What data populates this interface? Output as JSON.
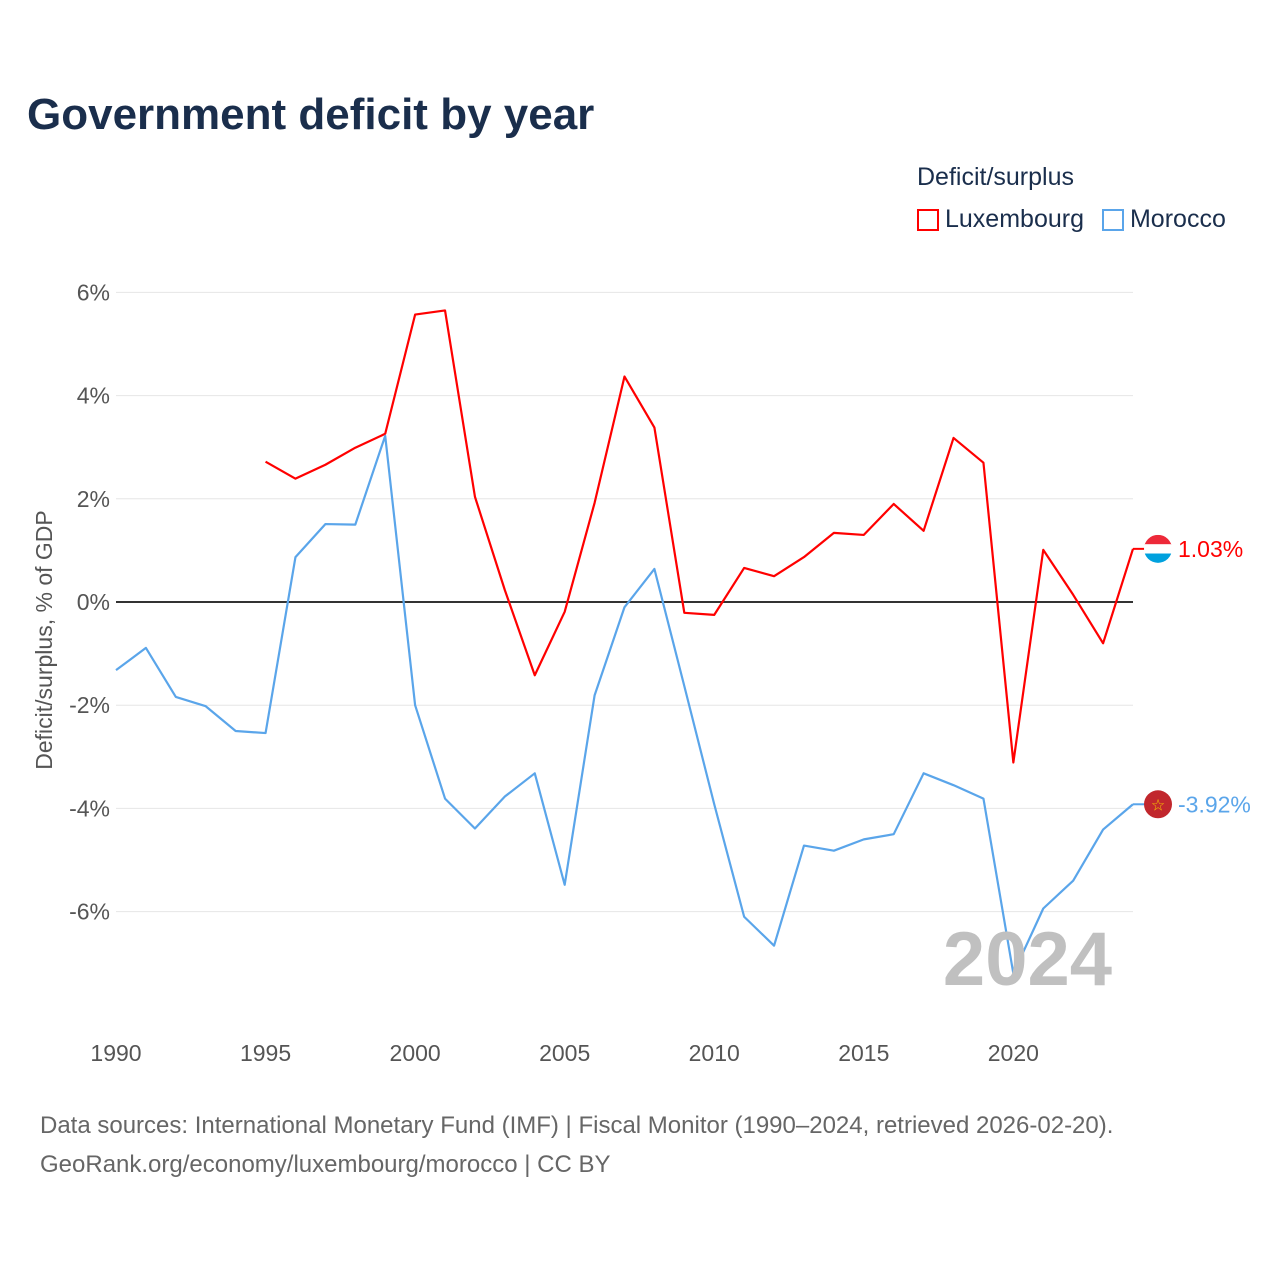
{
  "title": "Government deficit by year",
  "legend": {
    "title": "Deficit/surplus",
    "items": [
      {
        "name": "Luxembourg",
        "color": "#ff0000"
      },
      {
        "name": "Morocco",
        "color": "#5aa5ea"
      }
    ]
  },
  "source": {
    "line1": "Data sources: International Monetary Fund (IMF) | Fiscal Monitor (1990–2024, retrieved 2026-02-20).",
    "line2": "GeoRank.org/economy/luxembourg/morocco | CC BY"
  },
  "chart_data": {
    "type": "line",
    "title": "Government deficit by year",
    "xlabel": "",
    "ylabel": "Deficit/surplus, % of GDP",
    "xlim": [
      1990,
      2024
    ],
    "ylim": [
      -7.8,
      6.2
    ],
    "x_ticks": [
      1990,
      1995,
      2000,
      2005,
      2010,
      2015,
      2020
    ],
    "y_ticks": [
      6,
      4,
      2,
      0,
      -2,
      -4,
      -6
    ],
    "y_tick_labels": [
      "6%",
      "4%",
      "2%",
      "0%",
      "-2%",
      "-4%",
      "-6%"
    ],
    "year_watermark": "2024",
    "series": [
      {
        "name": "Luxembourg",
        "color": "#ff0000",
        "end_label": "1.03%",
        "x": [
          1995,
          1996,
          1997,
          1998,
          1999,
          2000,
          2001,
          2002,
          2003,
          2004,
          2005,
          2006,
          2007,
          2008,
          2009,
          2010,
          2011,
          2012,
          2013,
          2014,
          2015,
          2016,
          2017,
          2018,
          2019,
          2020,
          2021,
          2022,
          2023,
          2024
        ],
        "values": [
          2.72,
          2.39,
          2.66,
          2.99,
          3.26,
          5.57,
          5.65,
          2.04,
          0.23,
          -1.42,
          -0.19,
          1.92,
          4.37,
          3.38,
          -0.21,
          -0.25,
          0.66,
          0.5,
          0.87,
          1.34,
          1.3,
          1.9,
          1.38,
          3.18,
          2.7,
          -3.11,
          1.01,
          0.14,
          -0.8,
          1.03
        ]
      },
      {
        "name": "Morocco",
        "color": "#5aa5ea",
        "end_label": "-3.92%",
        "x": [
          1990,
          1991,
          1992,
          1993,
          1994,
          1995,
          1996,
          1997,
          1998,
          1999,
          2000,
          2001,
          2002,
          2003,
          2004,
          2005,
          2006,
          2007,
          2008,
          2009,
          2010,
          2011,
          2012,
          2013,
          2014,
          2015,
          2016,
          2017,
          2018,
          2019,
          2020,
          2021,
          2022,
          2023,
          2024
        ],
        "values": [
          -1.32,
          -0.89,
          -1.84,
          -2.02,
          -2.5,
          -2.54,
          0.87,
          1.51,
          1.5,
          3.22,
          -2.0,
          -3.81,
          -4.39,
          -3.77,
          -3.32,
          -5.48,
          -1.81,
          -0.1,
          0.64,
          -1.63,
          -3.92,
          -6.1,
          -6.66,
          -4.72,
          -4.82,
          -4.6,
          -4.5,
          -3.32,
          -3.55,
          -3.81,
          -7.2,
          -5.94,
          -5.4,
          -4.41,
          -3.92
        ]
      }
    ]
  }
}
